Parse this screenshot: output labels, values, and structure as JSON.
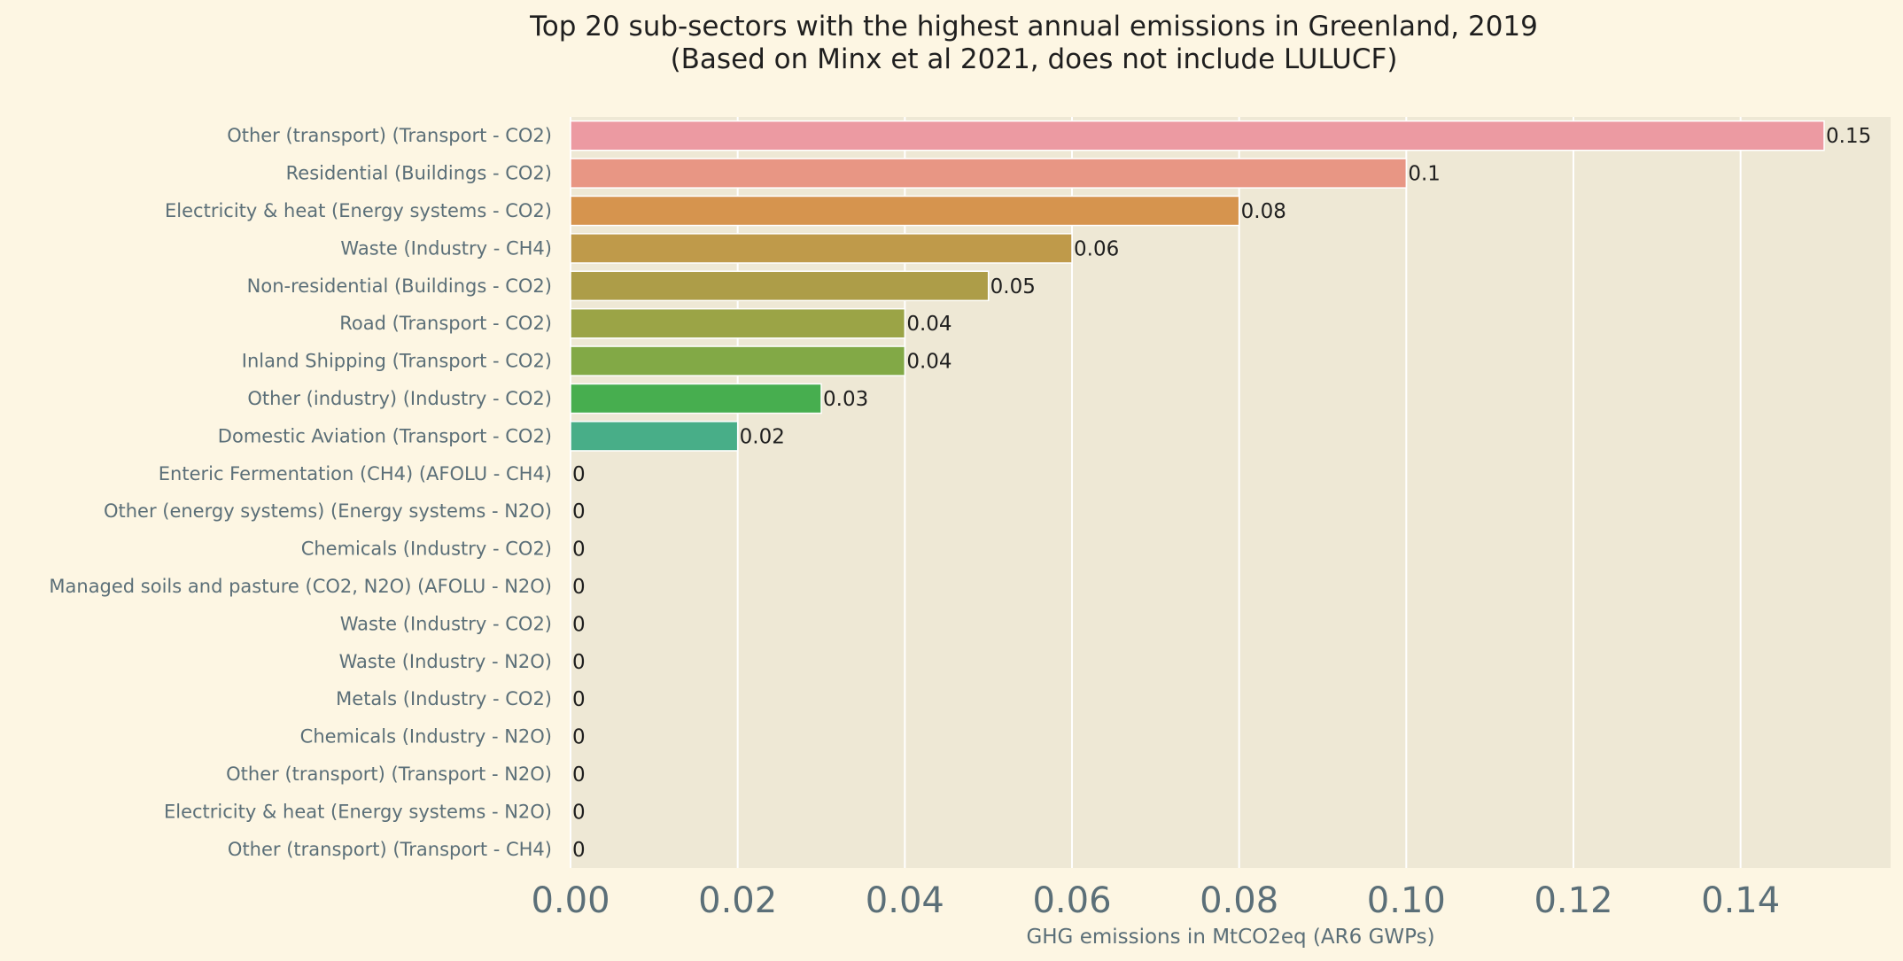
{
  "chart_data": {
    "type": "bar",
    "orientation": "horizontal",
    "title": "Top 20 sub-sectors with the highest annual emissions in Greenland, 2019",
    "subtitle": "(Based on Minx et al 2021, does not include LULUCF)",
    "xlabel": "GHG emissions in MtCO2eq (AR6 GWPs)",
    "ylabel": "",
    "xlim": [
      0,
      0.157
    ],
    "xticks": [
      0.0,
      0.02,
      0.04,
      0.06,
      0.08,
      0.1,
      0.12,
      0.14
    ],
    "xtick_labels": [
      "0.00",
      "0.02",
      "0.04",
      "0.06",
      "0.08",
      "0.10",
      "0.12",
      "0.14"
    ],
    "grid": true,
    "categories": [
      "Other (transport) (Transport - CO2)",
      "Residential (Buildings - CO2)",
      "Electricity & heat (Energy systems - CO2)",
      "Waste (Industry - CH4)",
      "Non-residential (Buildings - CO2)",
      "Road (Transport - CO2)",
      "Inland Shipping (Transport - CO2)",
      "Other (industry) (Industry - CO2)",
      "Domestic Aviation (Transport - CO2)",
      "Enteric Fermentation (CH4) (AFOLU - CH4)",
      "Other (energy systems) (Energy systems - N2O)",
      "Chemicals (Industry - CO2)",
      "Managed soils and pasture (CO2, N2O) (AFOLU - N2O)",
      "Waste (Industry - CO2)",
      "Waste (Industry - N2O)",
      "Metals (Industry - CO2)",
      "Chemicals (Industry - N2O)",
      "Other (transport) (Transport - N2O)",
      "Electricity & heat (Energy systems - N2O)",
      "Other (transport) (Transport - CH4)"
    ],
    "values": [
      0.15,
      0.1,
      0.08,
      0.06,
      0.05,
      0.04,
      0.04,
      0.03,
      0.02,
      0,
      0,
      0,
      0,
      0,
      0,
      0,
      0,
      0,
      0,
      0
    ],
    "data_labels": [
      "0.15",
      "0.1",
      "0.08",
      "0.06",
      "0.05",
      "0.04",
      "0.04",
      "0.03",
      "0.02",
      "0",
      "0",
      "0",
      "0",
      "0",
      "0",
      "0",
      "0",
      "0",
      "0",
      "0"
    ],
    "bar_colors": [
      "#ec9aa2",
      "#e89684",
      "#d6944e",
      "#bf9a4a",
      "#ad9d48",
      "#9ba446",
      "#82a946",
      "#47ae4f",
      "#48ae88",
      "#4aaaaa",
      "#4aa5bd",
      "#51a1d2",
      "#7e9de6",
      "#a895e6",
      "#c98be4",
      "#e184d8",
      "#eb86c2",
      "#ec8ab0",
      "#ec8f9c",
      "#ec9496"
    ],
    "colors": {
      "page_background": "#fdf6e3",
      "plot_background": "#eee8d5",
      "grid": "#ffffff",
      "label_text": "#5b6f78",
      "title_text": "#1f1f1f"
    }
  }
}
